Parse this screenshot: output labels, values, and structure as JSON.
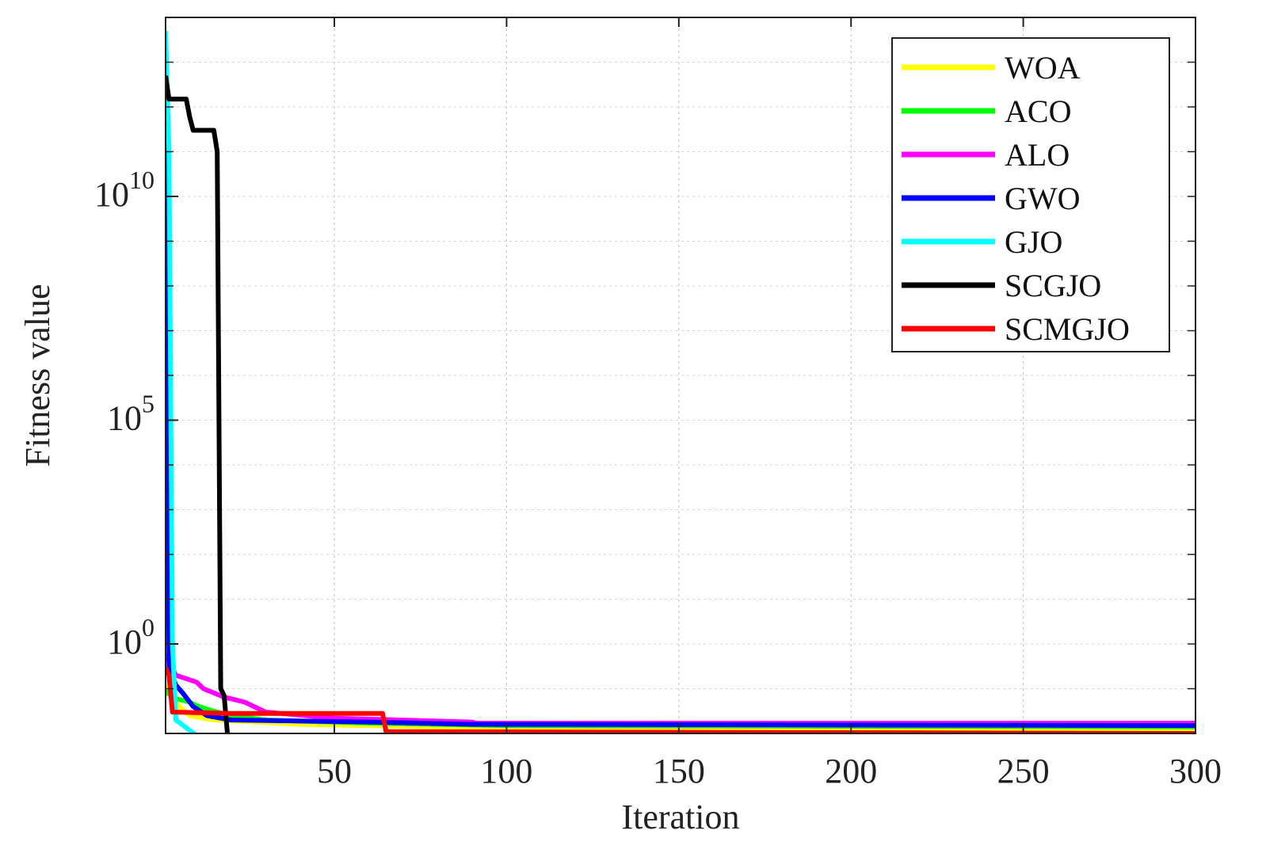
{
  "chart_data": {
    "type": "line",
    "title": "",
    "xlabel": "Iteration",
    "ylabel": "Fitness value",
    "xlim": [
      1,
      300
    ],
    "ylim_exponent": [
      -2,
      14
    ],
    "yscale": "log",
    "grid": true,
    "legend_position": "top-right",
    "x_ticks": [
      "50",
      "100",
      "150",
      "200",
      "250",
      "300"
    ],
    "y_ticks": [
      {
        "base": "10",
        "exp": "10",
        "value": 10000000000.0
      },
      {
        "base": "10",
        "exp": "5",
        "value": 100000.0
      },
      {
        "base": "10",
        "exp": "0",
        "value": 1
      }
    ],
    "series": [
      {
        "name": "WOA",
        "color": "#ffff00",
        "points": [
          [
            1,
            0.12
          ],
          [
            2,
            0.1
          ],
          [
            3,
            0.06
          ],
          [
            5,
            0.04
          ],
          [
            8,
            0.025
          ],
          [
            15,
            0.02
          ],
          [
            40,
            0.016
          ],
          [
            100,
            0.013
          ],
          [
            300,
            0.011
          ]
        ]
      },
      {
        "name": "ACO",
        "color": "#00ff00",
        "points": [
          [
            1,
            0.09
          ],
          [
            2,
            0.075
          ],
          [
            4,
            0.06
          ],
          [
            8,
            0.05
          ],
          [
            10,
            0.042
          ],
          [
            14,
            0.033
          ],
          [
            20,
            0.025
          ],
          [
            30,
            0.02
          ],
          [
            60,
            0.017
          ],
          [
            100,
            0.015
          ],
          [
            300,
            0.014
          ]
        ]
      },
      {
        "name": "ALO",
        "color": "#ff00ff",
        "points": [
          [
            1,
            0.6
          ],
          [
            2,
            0.4
          ],
          [
            4,
            0.2
          ],
          [
            10,
            0.14
          ],
          [
            12,
            0.1
          ],
          [
            18,
            0.065
          ],
          [
            24,
            0.05
          ],
          [
            30,
            0.03
          ],
          [
            50,
            0.022
          ],
          [
            90,
            0.018
          ],
          [
            91,
            0.017
          ],
          [
            300,
            0.017
          ]
        ]
      },
      {
        "name": "GWO",
        "color": "#0000ff",
        "points": [
          [
            1,
            30000000000000
          ],
          [
            2,
            0.3
          ],
          [
            4,
            0.12
          ],
          [
            6,
            0.08
          ],
          [
            9,
            0.04
          ],
          [
            13,
            0.025
          ],
          [
            20,
            0.02
          ],
          [
            60,
            0.018
          ],
          [
            90,
            0.016
          ],
          [
            300,
            0.015
          ]
        ]
      },
      {
        "name": "GJO",
        "color": "#00ffff",
        "points": [
          [
            1,
            50000000000000
          ],
          [
            2,
            100000000000
          ],
          [
            3,
            1
          ],
          [
            4,
            0.02
          ],
          [
            10,
            0.009
          ],
          [
            20,
            0.009
          ],
          [
            300,
            0.009
          ]
        ]
      },
      {
        "name": "SCGJO",
        "color": "#000000",
        "points": [
          [
            1,
            5000000000000
          ],
          [
            2,
            1500000000000
          ],
          [
            7,
            1500000000000
          ],
          [
            8,
            600000000000
          ],
          [
            9,
            300000000000
          ],
          [
            15,
            300000000000
          ],
          [
            16,
            100000000000
          ],
          [
            17,
            0.1
          ],
          [
            18,
            0.07
          ],
          [
            19,
            0.009
          ],
          [
            300,
            0.009
          ]
        ]
      },
      {
        "name": "SCMGJO",
        "color": "#ff0000",
        "points": [
          [
            1,
            0.3
          ],
          [
            2,
            0.2
          ],
          [
            3,
            0.03
          ],
          [
            20,
            0.028
          ],
          [
            64,
            0.028
          ],
          [
            65,
            0.011
          ],
          [
            300,
            0.01
          ]
        ]
      }
    ]
  }
}
